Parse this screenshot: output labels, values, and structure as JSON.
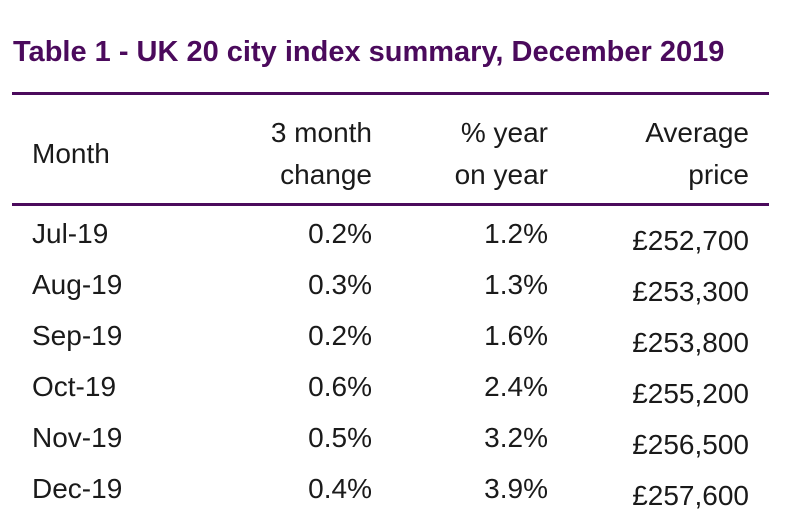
{
  "title": "Table 1 - UK 20 city index summary, December 2019",
  "headers": {
    "month": "Month",
    "three_month_change": "3 month\nchange",
    "year_on_year": "% year\non year",
    "average_price": "Average\nprice"
  },
  "rows": [
    {
      "month": "Jul-19",
      "three_month_change": "0.2%",
      "year_on_year": "1.2%",
      "average_price": "£252,700"
    },
    {
      "month": "Aug-19",
      "three_month_change": "0.3%",
      "year_on_year": "1.3%",
      "average_price": "£253,300"
    },
    {
      "month": "Sep-19",
      "three_month_change": "0.2%",
      "year_on_year": "1.6%",
      "average_price": "£253,800"
    },
    {
      "month": "Oct-19",
      "three_month_change": "0.6%",
      "year_on_year": "2.4%",
      "average_price": "£255,200"
    },
    {
      "month": "Nov-19",
      "three_month_change": "0.5%",
      "year_on_year": "3.2%",
      "average_price": "£256,500"
    },
    {
      "month": "Dec-19",
      "three_month_change": "0.4%",
      "year_on_year": "3.9%",
      "average_price": "£257,600"
    }
  ],
  "colors": {
    "accent": "#4b0a5c",
    "text": "#1a1a1a"
  }
}
